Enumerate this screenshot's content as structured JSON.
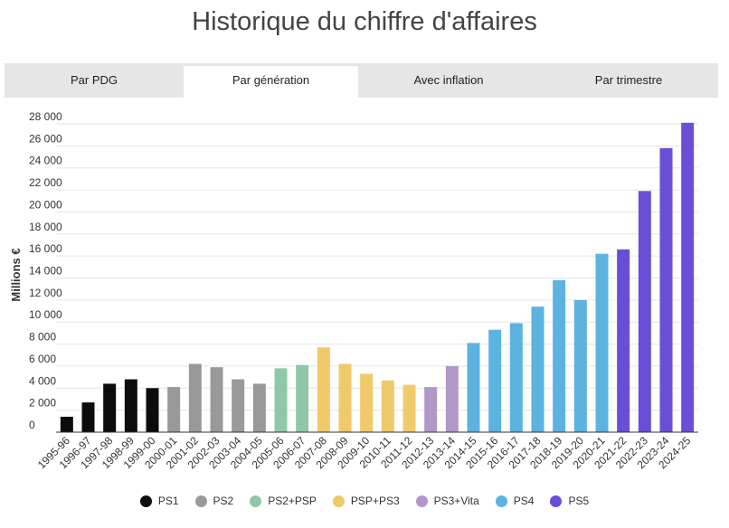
{
  "title": "Historique du chiffre d'affaires",
  "tabs": [
    {
      "label": "Par PDG",
      "active": false
    },
    {
      "label": "Par génération",
      "active": true
    },
    {
      "label": "Avec inflation",
      "active": false
    },
    {
      "label": "Par trimestre",
      "active": false
    }
  ],
  "chart_data": {
    "type": "bar",
    "title": "Historique du chiffre d'affaires",
    "ylabel": "Millions €",
    "xlabel": "",
    "ylim": [
      0,
      28000
    ],
    "ytick_step": 2000,
    "ytick_labels": [
      "0",
      "2 000",
      "4 000",
      "6 000",
      "8 000",
      "10 000",
      "12 000",
      "14 000",
      "16 000",
      "18 000",
      "20 000",
      "22 000",
      "24 000",
      "26 000",
      "28 000"
    ],
    "grid": true,
    "legend_position": "bottom",
    "categories": [
      "1995-96",
      "1996-97",
      "1997-98",
      "1998-99",
      "1999-00",
      "2000-01",
      "2001-02",
      "2002-03",
      "2003-04",
      "2004-05",
      "2005-06",
      "2006-07",
      "2007-08",
      "2008-09",
      "2009-10",
      "2010-11",
      "2011-12",
      "2012-13",
      "2013-14",
      "2014-15",
      "2015-16",
      "2016-17",
      "2017-18",
      "2018-19",
      "2019-20",
      "2020-21",
      "2021-22",
      "2022-23",
      "2023-24",
      "2024-25"
    ],
    "values": [
      1400,
      2700,
      4400,
      4800,
      4000,
      4100,
      6200,
      5900,
      4800,
      4400,
      5800,
      6100,
      7700,
      6200,
      5300,
      4700,
      4300,
      4100,
      6000,
      8100,
      9300,
      9900,
      11400,
      13800,
      12000,
      16200,
      16600,
      21900,
      25800,
      28100
    ],
    "groups": [
      "PS1",
      "PS1",
      "PS1",
      "PS1",
      "PS1",
      "PS2",
      "PS2",
      "PS2",
      "PS2",
      "PS2",
      "PS2+PSP",
      "PS2+PSP",
      "PSP+PS3",
      "PSP+PS3",
      "PSP+PS3",
      "PSP+PS3",
      "PSP+PS3",
      "PS3+Vita",
      "PS3+Vita",
      "PS4",
      "PS4",
      "PS4",
      "PS4",
      "PS4",
      "PS4",
      "PS4",
      "PS5",
      "PS5",
      "PS5",
      "PS5"
    ],
    "series": [
      {
        "name": "PS1",
        "color": "#0c0c0c"
      },
      {
        "name": "PS2",
        "color": "#999999"
      },
      {
        "name": "PS2+PSP",
        "color": "#8fc8a8"
      },
      {
        "name": "PSP+PS3",
        "color": "#f0ca6a"
      },
      {
        "name": "PS3+Vita",
        "color": "#b099c9"
      },
      {
        "name": "PS4",
        "color": "#5cb3e0"
      },
      {
        "name": "PS5",
        "color": "#6a4fd6"
      }
    ]
  }
}
